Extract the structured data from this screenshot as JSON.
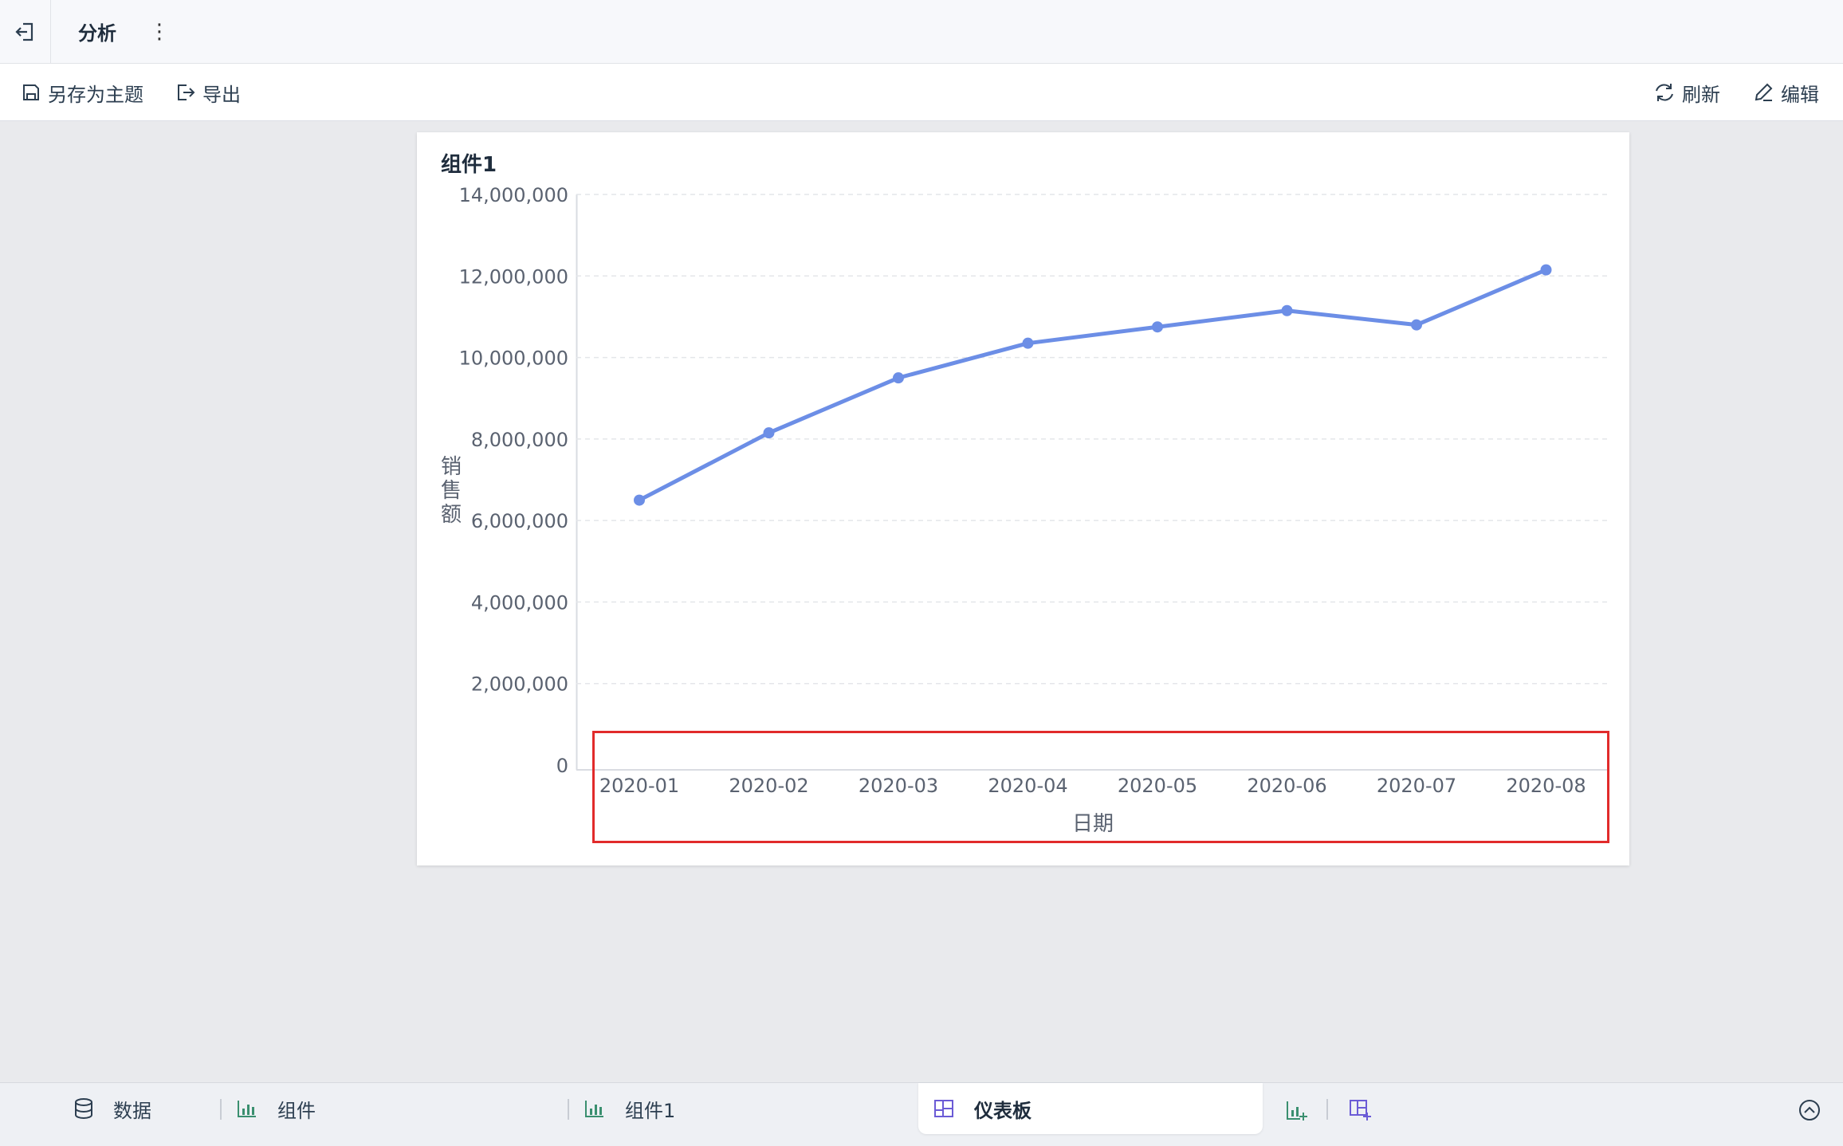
{
  "header": {
    "title": "分析",
    "more_label": "⋮"
  },
  "toolbar": {
    "save_as_theme": "另存为主题",
    "export": "导出",
    "refresh": "刷新",
    "edit": "编辑"
  },
  "card": {
    "title": "组件1"
  },
  "chart_data": {
    "type": "line",
    "title": "",
    "xlabel": "日期",
    "ylabel": "销售额",
    "categories": [
      "2020-01",
      "2020-02",
      "2020-03",
      "2020-04",
      "2020-05",
      "2020-06",
      "2020-07",
      "2020-08"
    ],
    "series": [
      {
        "values": [
          6500000,
          8150000,
          9500000,
          10350000,
          10750000,
          11150000,
          10800000,
          12150000
        ],
        "color": "#6c8ee6"
      }
    ],
    "ylim": [
      0,
      14000000
    ],
    "yticks": [
      0,
      2000000,
      4000000,
      6000000,
      8000000,
      10000000,
      12000000,
      14000000
    ],
    "ytick_labels": [
      "0",
      "2,000,000",
      "4,000,000",
      "6,000,000",
      "8,000,000",
      "10,000,000",
      "12,000,000",
      "14,000,000"
    ],
    "grid": true,
    "legend": "none"
  },
  "bottom_tabs": [
    {
      "label": "数据",
      "icon": "database-icon"
    },
    {
      "label": "组件",
      "icon": "bar-chart-icon"
    },
    {
      "label": "组件1",
      "icon": "bar-chart-icon"
    },
    {
      "label": "仪表板",
      "icon": "dashboard-icon",
      "active": true
    }
  ],
  "colors": {
    "accent": "#6c8ee6",
    "highlight": "#e12b2b",
    "icon_green": "#3a8f6f",
    "icon_purple": "#6b5bd6"
  }
}
